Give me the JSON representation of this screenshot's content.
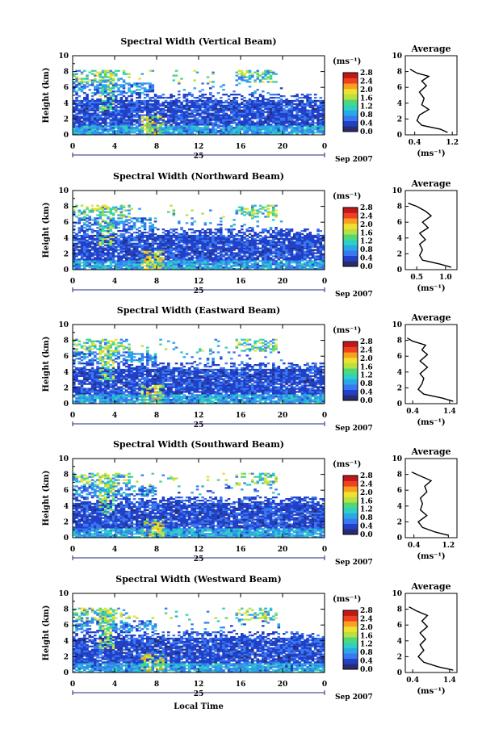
{
  "figure": {
    "xlabel": "Local Time",
    "date_day": "25",
    "date_label": "Sep 2007",
    "unit_label": "(ms⁻¹)",
    "avg_title": "Average",
    "ylabel": "Height (km)"
  },
  "colors": [
    "#2b2b6e",
    "#2040c8",
    "#3a78f0",
    "#28a8e8",
    "#30d0c0",
    "#50d878",
    "#b8e040",
    "#f0e030",
    "#f8a020",
    "#f04020",
    "#c01818"
  ],
  "chart_data": [
    {
      "type": "heatmap",
      "title": "Spectral Width (Vertical Beam)",
      "xticks": [
        "0",
        "4",
        "8",
        "12",
        "16",
        "20",
        "0"
      ],
      "yticks": [
        "0",
        "2",
        "4",
        "6",
        "8",
        "10"
      ],
      "xlim": [
        0,
        24
      ],
      "ylim": [
        0,
        10
      ],
      "colorbar_ticks": [
        "0.0",
        "0.4",
        "0.8",
        "1.2",
        "1.6",
        "2.0",
        "2.4",
        "2.8"
      ],
      "avg": {
        "xticks": [
          "0.4",
          "1.2"
        ],
        "xlim": [
          0.2,
          1.3
        ],
        "profile": [
          [
            1.1,
            0.3
          ],
          [
            0.95,
            0.7
          ],
          [
            0.55,
            1.2
          ],
          [
            0.45,
            1.8
          ],
          [
            0.5,
            2.5
          ],
          [
            0.7,
            3.2
          ],
          [
            0.55,
            3.8
          ],
          [
            0.6,
            4.6
          ],
          [
            0.5,
            5.4
          ],
          [
            0.65,
            6.2
          ],
          [
            0.55,
            6.8
          ],
          [
            0.7,
            7.4
          ],
          [
            0.45,
            7.8
          ],
          [
            0.3,
            8.3
          ]
        ]
      }
    },
    {
      "type": "heatmap",
      "title": "Spectral Width (Northward Beam)",
      "xticks": [
        "0",
        "4",
        "8",
        "12",
        "16",
        "20",
        "0"
      ],
      "yticks": [
        "0",
        "2",
        "4",
        "6",
        "8",
        "10"
      ],
      "xlim": [
        0,
        24
      ],
      "ylim": [
        0,
        10
      ],
      "colorbar_ticks": [
        "0.0",
        "0.4",
        "0.8",
        "1.2",
        "1.6",
        "2.0",
        "2.4",
        "2.8"
      ],
      "avg": {
        "xticks": [
          "0.5",
          "1.0"
        ],
        "xlim": [
          0.3,
          1.2
        ],
        "profile": [
          [
            1.1,
            0.3
          ],
          [
            0.9,
            0.7
          ],
          [
            0.6,
            1.2
          ],
          [
            0.55,
            1.8
          ],
          [
            0.6,
            2.5
          ],
          [
            0.55,
            3.2
          ],
          [
            0.65,
            3.8
          ],
          [
            0.55,
            4.6
          ],
          [
            0.7,
            5.3
          ],
          [
            0.6,
            6.0
          ],
          [
            0.75,
            6.8
          ],
          [
            0.65,
            7.4
          ],
          [
            0.5,
            8.0
          ],
          [
            0.35,
            8.4
          ]
        ]
      }
    },
    {
      "type": "heatmap",
      "title": "Spectral Width (Eastward Beam)",
      "xticks": [
        "0",
        "4",
        "8",
        "12",
        "16",
        "20",
        "0"
      ],
      "yticks": [
        "0",
        "2",
        "4",
        "6",
        "8",
        "10"
      ],
      "xlim": [
        0,
        24
      ],
      "ylim": [
        0,
        10
      ],
      "colorbar_ticks": [
        "0.0",
        "0.4",
        "0.8",
        "1.2",
        "1.6",
        "2.0",
        "2.4",
        "2.8"
      ],
      "avg": {
        "xticks": [
          "0.4",
          "1.4"
        ],
        "xlim": [
          0.2,
          1.6
        ],
        "profile": [
          [
            1.5,
            0.3
          ],
          [
            1.2,
            0.7
          ],
          [
            0.7,
            1.2
          ],
          [
            0.55,
            1.8
          ],
          [
            0.65,
            2.5
          ],
          [
            0.7,
            3.2
          ],
          [
            0.6,
            3.8
          ],
          [
            0.8,
            4.6
          ],
          [
            0.6,
            5.4
          ],
          [
            0.8,
            6.2
          ],
          [
            0.65,
            6.8
          ],
          [
            0.75,
            7.4
          ],
          [
            0.4,
            7.9
          ],
          [
            0.25,
            8.3
          ]
        ]
      }
    },
    {
      "type": "heatmap",
      "title": "Spectral Width (Southward Beam)",
      "xticks": [
        "0",
        "4",
        "8",
        "12",
        "16",
        "20",
        "0"
      ],
      "yticks": [
        "0",
        "2",
        "4",
        "6",
        "8",
        "10"
      ],
      "xlim": [
        0,
        24
      ],
      "ylim": [
        0,
        10
      ],
      "colorbar_ticks": [
        "0.0",
        "0.4",
        "0.8",
        "1.2",
        "1.6",
        "2.0",
        "2.4",
        "2.8"
      ],
      "avg": {
        "xticks": [
          "0.4",
          "1.2"
        ],
        "xlim": [
          0.2,
          1.4
        ],
        "profile": [
          [
            1.2,
            0.3
          ],
          [
            0.9,
            0.7
          ],
          [
            0.6,
            1.3
          ],
          [
            0.5,
            2.0
          ],
          [
            0.7,
            2.8
          ],
          [
            0.55,
            3.5
          ],
          [
            0.6,
            4.3
          ],
          [
            0.55,
            5.0
          ],
          [
            0.7,
            5.8
          ],
          [
            0.65,
            6.5
          ],
          [
            0.8,
            7.2
          ],
          [
            0.55,
            7.8
          ],
          [
            0.35,
            8.3
          ]
        ]
      }
    },
    {
      "type": "heatmap",
      "title": "Spectral Width (Westward Beam)",
      "xticks": [
        "0",
        "4",
        "8",
        "12",
        "16",
        "20",
        "0"
      ],
      "yticks": [
        "0",
        "2",
        "4",
        "6",
        "8",
        "10"
      ],
      "xlim": [
        0,
        24
      ],
      "ylim": [
        0,
        10
      ],
      "colorbar_ticks": [
        "0.0",
        "0.4",
        "0.8",
        "1.2",
        "1.6",
        "2.0",
        "2.4",
        "2.8"
      ],
      "avg": {
        "xticks": [
          "0.4",
          "1.4"
        ],
        "xlim": [
          0.2,
          1.6
        ],
        "profile": [
          [
            1.5,
            0.3
          ],
          [
            1.1,
            0.7
          ],
          [
            0.7,
            1.3
          ],
          [
            0.55,
            2.0
          ],
          [
            0.7,
            2.8
          ],
          [
            0.6,
            3.5
          ],
          [
            0.75,
            4.2
          ],
          [
            0.6,
            5.0
          ],
          [
            0.8,
            5.8
          ],
          [
            0.65,
            6.5
          ],
          [
            0.8,
            7.2
          ],
          [
            0.5,
            7.8
          ],
          [
            0.3,
            8.3
          ]
        ]
      }
    }
  ]
}
